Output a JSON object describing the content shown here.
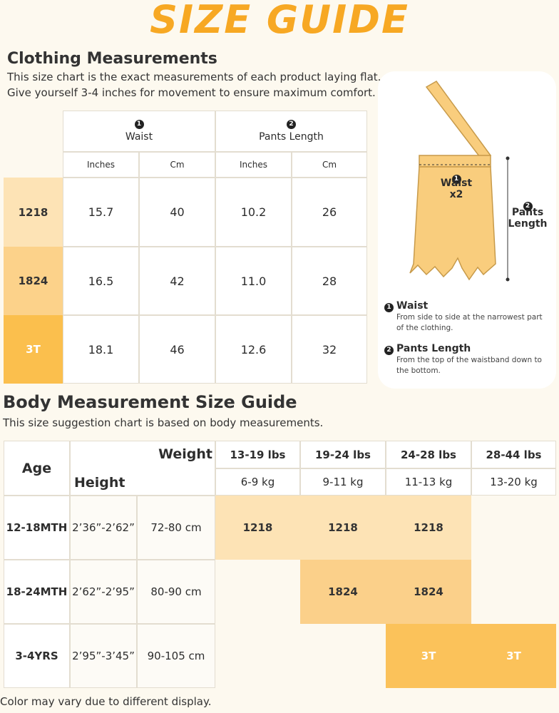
{
  "title": "SIZE GUIDE",
  "clothing": {
    "heading": "Clothing Measurements",
    "description": [
      "This size chart is the exact measurements of each product laying flat.",
      "Give yourself 3-4 inches for movement to ensure maximum comfort."
    ],
    "groups": [
      {
        "number": "1",
        "label": "Waist"
      },
      {
        "number": "2",
        "label": "Pants Length"
      }
    ],
    "units": [
      "Inches",
      "Cm",
      "Inches",
      "Cm"
    ],
    "rows": [
      {
        "size": "1218",
        "color": "#fde3b5",
        "text_color": "#333333",
        "values": [
          "15.7",
          "40",
          "10.2",
          "26"
        ]
      },
      {
        "size": "1824",
        "color": "#fcd28a",
        "text_color": "#333333",
        "values": [
          "16.5",
          "42",
          "11.0",
          "28"
        ]
      },
      {
        "size": "3T",
        "color": "#fbbf4d",
        "text_color": "#ffffff",
        "values": [
          "18.1",
          "46",
          "12.6",
          "32"
        ]
      }
    ]
  },
  "diagram": {
    "waist_number": "1",
    "waist_label": "Waist x2",
    "length_number": "2",
    "length_label": "Pants Length"
  },
  "notes": [
    {
      "number": "1",
      "title": "Waist",
      "text": "From side to side at the narrowest part of the clothing."
    },
    {
      "number": "2",
      "title": "Pants Length",
      "text": "From the top of the waistband down to the bottom."
    }
  ],
  "body": {
    "heading": "Body Measurement Size Guide",
    "description": "This size suggestion chart is based on body measurements.",
    "age_header": "Age",
    "weight_header": "Weight",
    "height_header": "Height",
    "weights_lbs": [
      "13-19 lbs",
      "19-24 lbs",
      "24-28 lbs",
      "28-44 lbs"
    ],
    "weights_kg": [
      "6-9 kg",
      "9-11 kg",
      "11-13 kg",
      "13-20 kg"
    ],
    "rows": [
      {
        "age": "12-18MTH",
        "height_in": "2’36”-2’62”",
        "height_cm": "72-80 cm",
        "color": "#fde3b5",
        "text_color": "#333333",
        "sizes": [
          "1218",
          "1218",
          "1218",
          null
        ]
      },
      {
        "age": "18-24MTH",
        "height_in": "2’62”-2’95”",
        "height_cm": "80-90 cm",
        "color": "#fbd08a",
        "text_color": "#333333",
        "sizes": [
          null,
          "1824",
          "1824",
          null
        ]
      },
      {
        "age": "3-4YRS",
        "height_in": "2’95”-3’45”",
        "height_cm": "90-105 cm",
        "color": "#fbc25a",
        "text_color": "#ffffff",
        "sizes": [
          null,
          null,
          "3T",
          "3T"
        ]
      }
    ]
  },
  "footer": "Color may vary due to different display."
}
